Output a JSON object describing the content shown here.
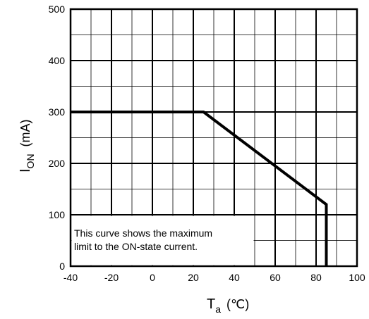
{
  "chart_data": {
    "type": "line",
    "title": "",
    "xlabel_main": "T",
    "xlabel_sub": "a",
    "xlabel_unit": "(℃)",
    "ylabel_main": "I",
    "ylabel_sub": "ON",
    "ylabel_unit": "(mA)",
    "xlim": [
      -40,
      100
    ],
    "ylim": [
      0,
      500
    ],
    "x_ticks": [
      "-40",
      "-20",
      "0",
      "20",
      "40",
      "60",
      "80",
      "100"
    ],
    "y_ticks": [
      "0",
      "100",
      "200",
      "300",
      "400",
      "500"
    ],
    "grid": true,
    "series": [
      {
        "x": [
          -40,
          25,
          85,
          85
        ],
        "y": [
          300,
          300,
          120,
          0
        ]
      }
    ],
    "annotation": {
      "line1": "This curve shows the maximum",
      "line2": "limit to the ON-state current."
    }
  }
}
